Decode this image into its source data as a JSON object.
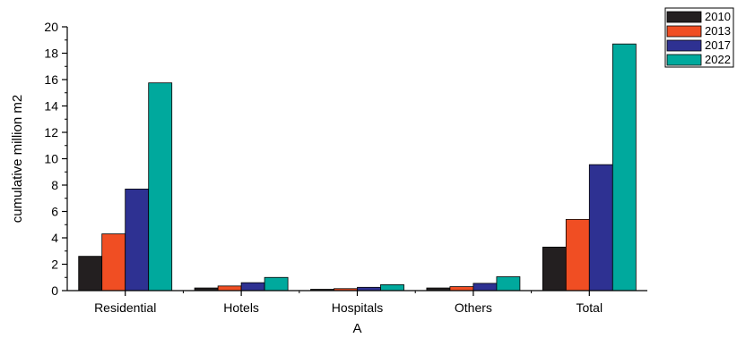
{
  "chart_data": {
    "type": "bar",
    "title": "",
    "xlabel": "A",
    "ylabel": "cumulative million m2",
    "ylim": [
      0,
      20
    ],
    "yticks": [
      0,
      2,
      4,
      6,
      8,
      10,
      12,
      14,
      16,
      18,
      20
    ],
    "categories": [
      "Residential",
      "Hotels",
      "Hospitals",
      "Others",
      "Total"
    ],
    "series": [
      {
        "name": "2010",
        "color": "#231f20",
        "values": [
          2.6,
          0.2,
          0.1,
          0.2,
          3.3
        ]
      },
      {
        "name": "2013",
        "color": "#f04e23",
        "values": [
          4.3,
          0.35,
          0.15,
          0.3,
          5.4
        ]
      },
      {
        "name": "2017",
        "color": "#2e3192",
        "values": [
          7.7,
          0.6,
          0.25,
          0.55,
          9.55
        ]
      },
      {
        "name": "2022",
        "color": "#00a99d",
        "values": [
          15.75,
          1.0,
          0.45,
          1.05,
          18.7
        ]
      }
    ],
    "legend_position": "top-right",
    "grid": false
  }
}
